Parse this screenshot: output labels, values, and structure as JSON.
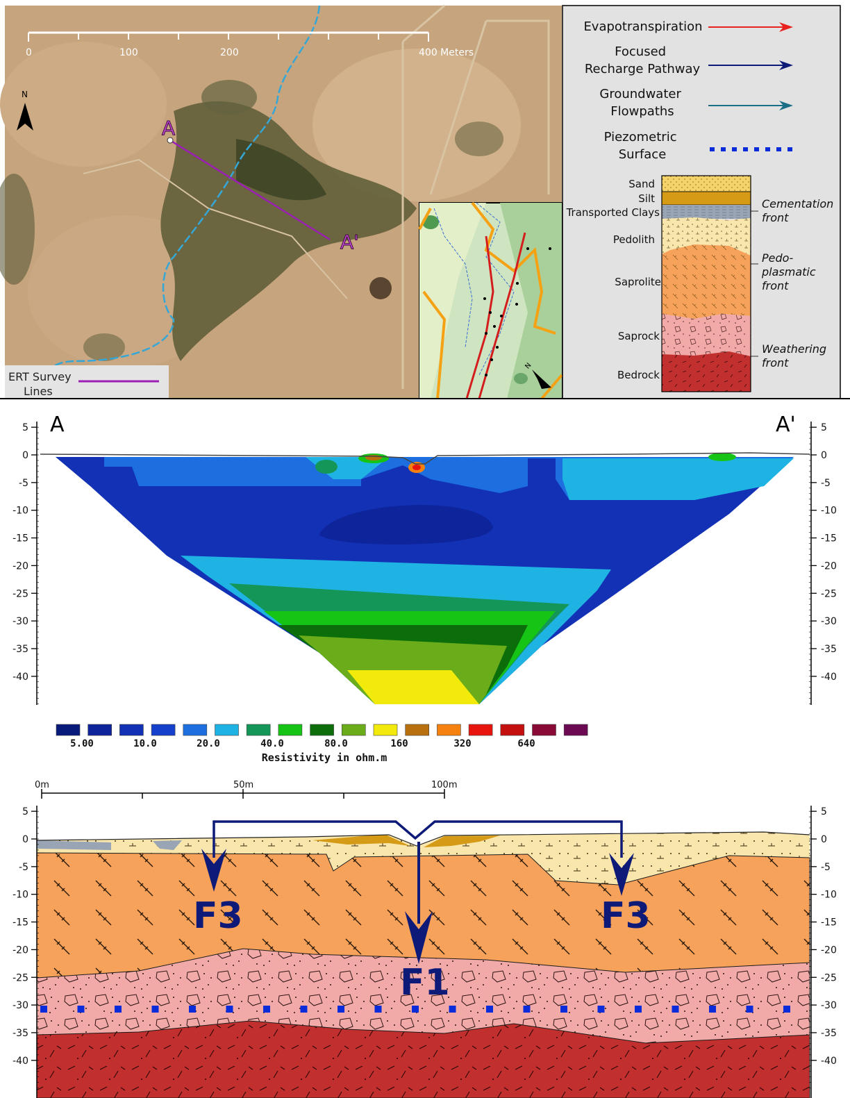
{
  "map": {
    "scale_ticks": [
      "0",
      "100",
      "200",
      "400 Meters"
    ],
    "north_label": "N",
    "point_a": "A",
    "point_a_prime": "A'",
    "ert_legend_label": "ERT Survey Lines",
    "inset_north_label": "N"
  },
  "legend": {
    "evapotranspiration": "Evapotranspiration",
    "focused_recharge": "Focused Recharge Pathway",
    "groundwater": "Groundwater Flowpaths",
    "piezometric": "Piezometric Surface",
    "layers": [
      "Sand",
      "Silt",
      "Transported Clays",
      "Pedolith",
      "Saprolite",
      "Saprock",
      "Bedrock"
    ],
    "fronts": [
      "Cementation front",
      "Pedo-plasmatic front",
      "Weathering front"
    ]
  },
  "ert": {
    "label_left": "A",
    "label_right": "A'",
    "y_ticks": [
      "5",
      "0",
      "-5",
      "-10",
      "-15",
      "-20",
      "-25",
      "-30",
      "-35",
      "-40"
    ],
    "colorbar_labels": [
      "5.00",
      "10.0",
      "20.0",
      "40.0",
      "80.0",
      "160",
      "320",
      "640"
    ],
    "colorbar_title": "Resistivity in ohm.m"
  },
  "model": {
    "distance_ticks": [
      "0m",
      "50m",
      "100m"
    ],
    "y_ticks": [
      "5",
      "0",
      "-5",
      "-10",
      "-15",
      "-20",
      "-25",
      "-30",
      "-35",
      "-40"
    ],
    "labels": {
      "f3_left": "F3",
      "f1": "F1",
      "f3_right": "F3"
    }
  },
  "colors": {
    "sand": "#f3d36a",
    "silt": "#d69b16",
    "clay": "#99a5b4",
    "pedolith": "#f8e6ad",
    "saprolite": "#f7a25a",
    "saprock": "#f2aaa8",
    "bedrock": "#c1302e",
    "evap": "#e8211c",
    "recharge": "#0d1a78",
    "groundwater": "#1a6f86",
    "piezo": "#0a2bd9",
    "ert": "#9b1fb5",
    "resistivity_scale": [
      "#081a7a",
      "#0d249b",
      "#1231b5",
      "#1540cc",
      "#1d6fe0",
      "#1fb3e4",
      "#149658",
      "#16c416",
      "#0b6e0b",
      "#6aac19",
      "#f2ea0b",
      "#b8700f",
      "#f5820f",
      "#e8150f",
      "#c4110f",
      "#8a0a37",
      "#6b0a52"
    ]
  }
}
